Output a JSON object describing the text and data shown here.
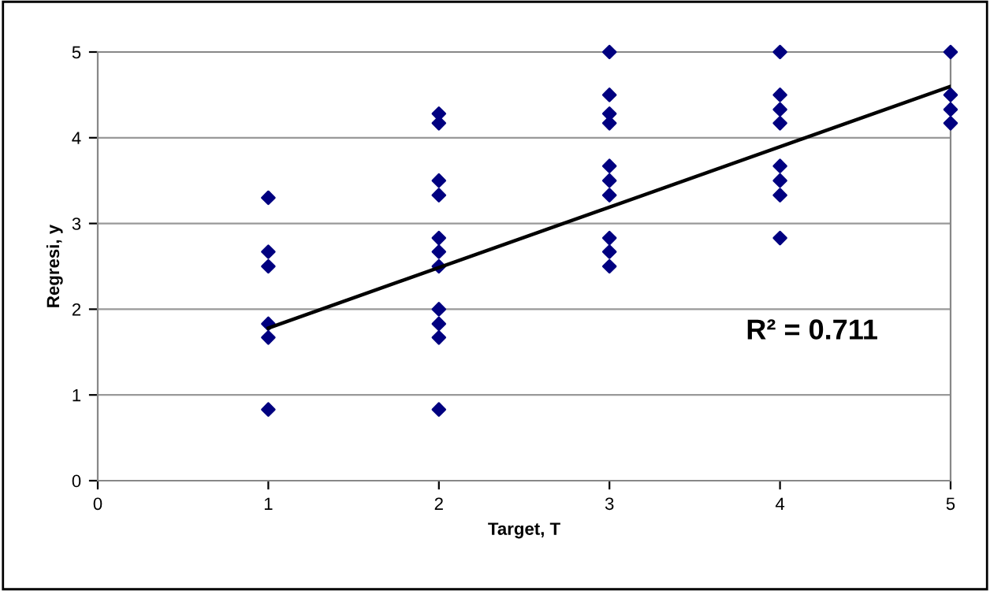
{
  "chart_data": {
    "type": "scatter",
    "xlabel": "Target, T",
    "ylabel": "Regresi, y",
    "xlim": [
      0,
      5
    ],
    "ylim": [
      0,
      5
    ],
    "xticks": [
      0,
      1,
      2,
      3,
      4,
      5
    ],
    "yticks": [
      0,
      1,
      2,
      3,
      4,
      5
    ],
    "grid": "y",
    "legend": false,
    "annotations": [
      "R² = 0.711"
    ],
    "series": [
      {
        "color": "#000080",
        "marker": "diamond",
        "x": [
          1,
          1,
          1,
          1,
          1,
          1,
          2,
          2,
          2,
          2,
          2,
          2,
          2,
          2,
          2,
          2,
          2,
          3,
          3,
          3,
          3,
          3,
          3,
          3,
          3,
          3,
          3,
          4,
          4,
          4,
          4,
          4,
          4,
          4,
          4,
          5,
          5,
          5,
          5
        ],
        "values": [
          3.3,
          2.67,
          2.5,
          1.83,
          1.67,
          0.83,
          4.28,
          4.17,
          3.5,
          3.33,
          2.83,
          2.67,
          2.5,
          2.0,
          1.83,
          1.67,
          0.83,
          5.0,
          4.5,
          4.28,
          4.17,
          3.67,
          3.5,
          3.33,
          2.83,
          2.67,
          2.5,
          5.0,
          4.5,
          4.33,
          4.17,
          3.67,
          3.5,
          3.33,
          2.83,
          5.0,
          4.5,
          4.33,
          4.17
        ]
      },
      {
        "type": "line",
        "marker": "none",
        "color": "#000000",
        "x": [
          1,
          5
        ],
        "values": [
          1.78,
          4.6
        ]
      }
    ]
  }
}
